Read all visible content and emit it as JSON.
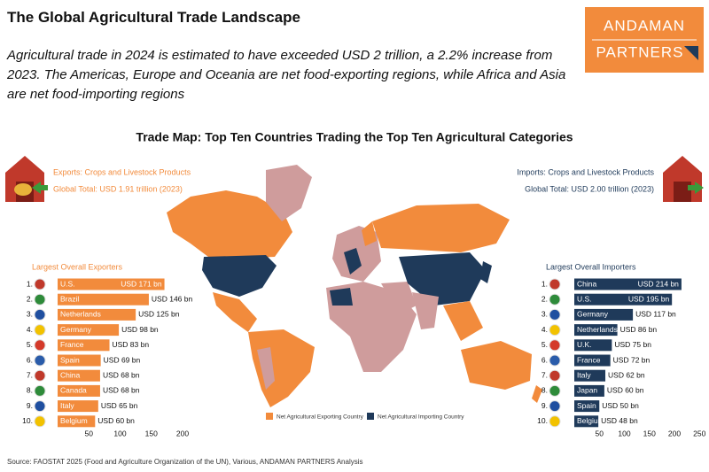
{
  "header": {
    "title": "The Global Agricultural Trade Landscape",
    "subtitle": "Agricultural trade in 2024 is estimated to have exceeded USD 2 trillion, a 2.2% increase from 2023. The Americas, Europe and Oceania are net food-exporting regions, while Africa and Asia are net food-importing regions"
  },
  "logo": [
    "ANDAMAN",
    "PARTNERS"
  ],
  "map": {
    "title": "Trade Map: Top Ten Countries Trading the Top Ten Agricultural Categories",
    "exports": {
      "label": "Exports: Crops and Livestock Products",
      "total": "Global Total: USD 1.91 trillion (2023)"
    },
    "imports": {
      "label": "Imports: Crops and Livestock Products",
      "total": "Global Total: USD 2.00 trillion (2023)"
    },
    "legend": [
      "Net Agricultural Exporting Country",
      "Net Agricultural Importing Country"
    ]
  },
  "source": "Source: FAOSTAT 2025 (Food and Agriculture Organization of the UN), Various, ANDAMAN PARTNERS Analysis",
  "chart_data": [
    {
      "type": "bar",
      "orientation": "horizontal",
      "title": "Largest Overall Exporters",
      "ranks": [
        "1.",
        "2.",
        "3.",
        "4.",
        "5.",
        "6.",
        "7.",
        "8.",
        "9.",
        "10."
      ],
      "categories": [
        "U.S.",
        "Brazil",
        "Netherlands",
        "Germany",
        "France",
        "Spain",
        "China",
        "Canada",
        "Italy",
        "Belgium"
      ],
      "values": [
        171,
        146,
        125,
        98,
        83,
        69,
        68,
        68,
        65,
        60
      ],
      "value_labels": [
        "USD 171 bn",
        "USD 146 bn",
        "USD 125 bn",
        "USD 98 bn",
        "USD 83 bn",
        "USD 69 bn",
        "USD 68 bn",
        "USD 68 bn",
        "USD 65 bn",
        "USD 60 bn"
      ],
      "color": "#f28b3c",
      "xlim": [
        0,
        200
      ],
      "xticks": [
        50,
        100,
        150,
        200
      ]
    },
    {
      "type": "bar",
      "orientation": "horizontal",
      "title": "Largest Overall Importers",
      "ranks": [
        "1.",
        "2.",
        "3.",
        "4.",
        "5.",
        "6.",
        "7.",
        "8.",
        "9.",
        "10."
      ],
      "categories": [
        "China",
        "U.S.",
        "Germany",
        "Netherlands",
        "U.K.",
        "France",
        "Italy",
        "Japan",
        "Spain",
        "Belgium"
      ],
      "values": [
        214,
        195,
        117,
        86,
        75,
        72,
        62,
        60,
        50,
        48
      ],
      "value_labels": [
        "USD 214 bn",
        "USD 195 bn",
        "USD 117 bn",
        "USD 86 bn",
        "USD 75 bn",
        "USD 72 bn",
        "USD 62 bn",
        "USD 60 bn",
        "USD 50 bn",
        "USD 48 bn"
      ],
      "color": "#1f3a5a",
      "xlim": [
        0,
        250
      ],
      "xticks": [
        50,
        100,
        150,
        200,
        250
      ]
    }
  ]
}
